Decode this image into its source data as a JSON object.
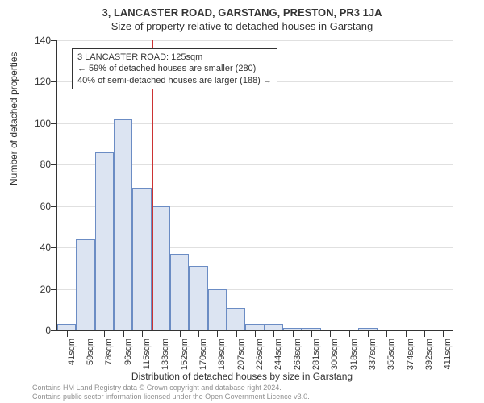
{
  "title": "3, LANCASTER ROAD, GARSTANG, PRESTON, PR3 1JA",
  "subtitle": "Size of property relative to detached houses in Garstang",
  "y_axis_title": "Number of detached properties",
  "x_axis_title": "Distribution of detached houses by size in Garstang",
  "annotation": {
    "line1": "3 LANCASTER ROAD: 125sqm",
    "line2": "← 59% of detached houses are smaller (280)",
    "line3": "40% of semi-detached houses are larger (188) →"
  },
  "footer": {
    "line1": "Contains HM Land Registry data © Crown copyright and database right 2024.",
    "line2": "Contains public sector information licensed under the Open Government Licence v3.0."
  },
  "chart": {
    "type": "histogram",
    "ylim": [
      0,
      140
    ],
    "ytick_step": 20,
    "y_ticks": [
      0,
      20,
      40,
      60,
      80,
      100,
      120,
      140
    ],
    "background_color": "#ffffff",
    "grid_color": "#e0e0e0",
    "bar_fill": "#dce4f2",
    "bar_stroke": "#6b8cc4",
    "ref_line_color": "#cc3333",
    "ref_value_sqm": 125,
    "x_labels": [
      "41sqm",
      "59sqm",
      "78sqm",
      "96sqm",
      "115sqm",
      "133sqm",
      "152sqm",
      "170sqm",
      "189sqm",
      "207sqm",
      "226sqm",
      "244sqm",
      "263sqm",
      "281sqm",
      "300sqm",
      "318sqm",
      "337sqm",
      "355sqm",
      "374sqm",
      "392sqm",
      "411sqm"
    ],
    "values": [
      3,
      44,
      86,
      102,
      69,
      60,
      37,
      31,
      20,
      11,
      3,
      3,
      1,
      1,
      0,
      0,
      1,
      0,
      0,
      0,
      0
    ],
    "title_fontsize": 13,
    "label_fontsize": 12,
    "tick_fontsize": 11
  }
}
